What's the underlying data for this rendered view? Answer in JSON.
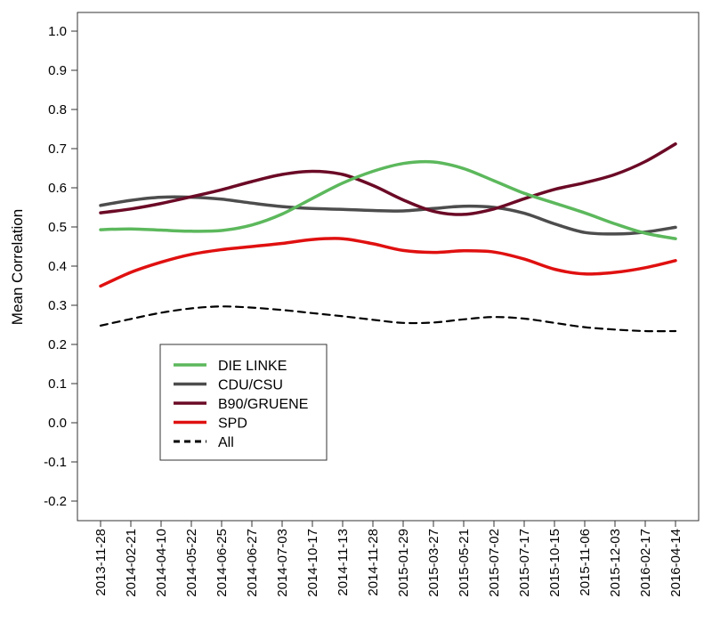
{
  "chart_data": {
    "type": "line",
    "title": "",
    "xlabel": "",
    "ylabel": "Mean Correlation",
    "ylim": [
      -0.25,
      1.05
    ],
    "yticks": [
      "-0.2",
      "-0.1",
      "0.0",
      "0.1",
      "0.2",
      "0.3",
      "0.4",
      "0.5",
      "0.6",
      "0.7",
      "0.8",
      "0.9",
      "1.0"
    ],
    "categories": [
      "2013-11-28",
      "2014-02-21",
      "2014-04-10",
      "2014-05-22",
      "2014-06-25",
      "2014-06-27",
      "2014-07-03",
      "2014-10-17",
      "2014-11-13",
      "2014-11-28",
      "2015-01-29",
      "2015-03-27",
      "2015-05-21",
      "2015-07-02",
      "2015-07-17",
      "2015-10-15",
      "2015-11-06",
      "2015-12-03",
      "2016-02-17",
      "2016-04-14"
    ],
    "legend_position": "bottom-left",
    "series": [
      {
        "name": "DIE LINKE",
        "color": "#5cb85c",
        "dash": "solid",
        "values": [
          0.493,
          0.495,
          0.492,
          0.489,
          0.491,
          0.505,
          0.533,
          0.573,
          0.612,
          0.642,
          0.662,
          0.666,
          0.649,
          0.618,
          0.586,
          0.561,
          0.536,
          0.508,
          0.484,
          0.47
        ]
      },
      {
        "name": "CDU/CSU",
        "color": "#4d4d4d",
        "dash": "solid",
        "values": [
          0.555,
          0.568,
          0.576,
          0.576,
          0.571,
          0.561,
          0.552,
          0.547,
          0.545,
          0.542,
          0.541,
          0.547,
          0.553,
          0.55,
          0.535,
          0.508,
          0.486,
          0.482,
          0.487,
          0.499
        ]
      },
      {
        "name": "B90/GRUENE",
        "color": "#6b0a26",
        "dash": "solid",
        "values": [
          0.536,
          0.546,
          0.56,
          0.577,
          0.595,
          0.616,
          0.634,
          0.642,
          0.634,
          0.606,
          0.569,
          0.54,
          0.532,
          0.546,
          0.572,
          0.596,
          0.613,
          0.634,
          0.667,
          0.712
        ]
      },
      {
        "name": "SPD",
        "color": "#e01010",
        "dash": "solid",
        "values": [
          0.349,
          0.384,
          0.41,
          0.43,
          0.442,
          0.45,
          0.458,
          0.468,
          0.47,
          0.457,
          0.44,
          0.435,
          0.439,
          0.436,
          0.418,
          0.392,
          0.38,
          0.384,
          0.396,
          0.414
        ]
      },
      {
        "name": "All",
        "color": "#000000",
        "dash": "dashed",
        "values": [
          0.248,
          0.265,
          0.281,
          0.292,
          0.297,
          0.294,
          0.288,
          0.28,
          0.272,
          0.263,
          0.255,
          0.256,
          0.264,
          0.27,
          0.266,
          0.255,
          0.244,
          0.238,
          0.234,
          0.234
        ]
      }
    ]
  }
}
